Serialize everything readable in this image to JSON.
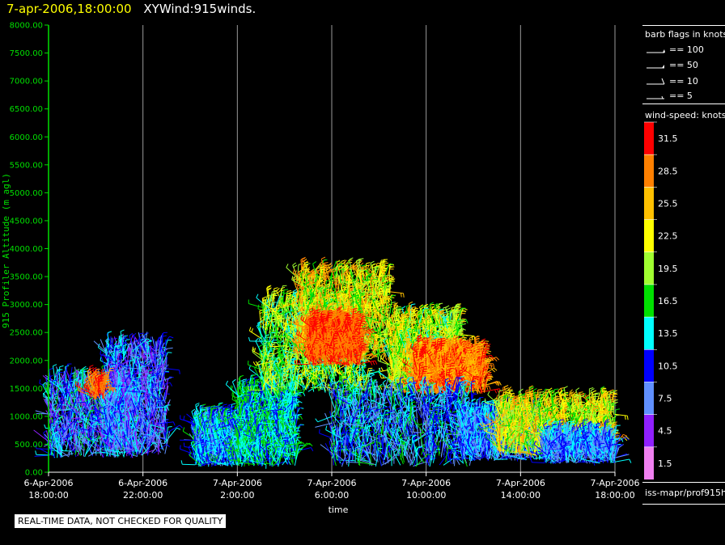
{
  "header": {
    "date": "7-apr-2006,18:00:00",
    "name": "XYWind:915winds."
  },
  "barb_legend": {
    "title": "barb flags in knots",
    "items": [
      "== 100",
      "== 50",
      "== 10",
      "== 5"
    ]
  },
  "wind_speed_legend": {
    "title": "wind-speed: knots",
    "bins": [
      {
        "label": "31.5",
        "color": "#ff0000"
      },
      {
        "label": "28.5",
        "color": "#ff8000"
      },
      {
        "label": "25.5",
        "color": "#ffc000"
      },
      {
        "label": "22.5",
        "color": "#ffff00"
      },
      {
        "label": "19.5",
        "color": "#a0ff30"
      },
      {
        "label": "16.5",
        "color": "#00e000"
      },
      {
        "label": "13.5",
        "color": "#00ffff"
      },
      {
        "label": "10.5",
        "color": "#0000ff"
      },
      {
        "label": "7.5",
        "color": "#6090ff"
      },
      {
        "label": "4.5",
        "color": "#9020ff"
      },
      {
        "label": "1.5",
        "color": "#f080f0"
      }
    ]
  },
  "source_label": "iss-mapr/prof915h",
  "quality_notice": "REAL-TIME DATA, NOT CHECKED FOR QUALITY",
  "chart_data": {
    "type": "scatter",
    "ylabel": "915 Profiler Altitude (m agl)",
    "xlabel": "time",
    "ylim": [
      0,
      8000
    ],
    "y_ticks": [
      "0.00",
      "500.00",
      "1000.00",
      "1500.00",
      "2000.00",
      "2500.00",
      "3000.00",
      "3500.00",
      "4000.00",
      "4500.00",
      "5000.00",
      "5500.00",
      "6000.00",
      "6500.00",
      "7000.00",
      "7500.00",
      "8000.00"
    ],
    "x_range_hours": [
      0,
      24
    ],
    "x_ticks": [
      {
        "date": "6-Apr-2006",
        "time": "18:00:00"
      },
      {
        "date": "6-Apr-2006",
        "time": "22:00:00"
      },
      {
        "date": "7-Apr-2006",
        "time": "2:00:00"
      },
      {
        "date": "7-Apr-2006",
        "time": "6:00:00"
      },
      {
        "date": "7-Apr-2006",
        "time": "10:00:00"
      },
      {
        "date": "7-Apr-2006",
        "time": "14:00:00"
      },
      {
        "date": "7-Apr-2006",
        "time": "18:00:00"
      }
    ],
    "grid": "vertical",
    "series_description_note": "wind barbs colored by wind speed (knots)",
    "clusters": [
      {
        "x0": 0.0,
        "x1": 3.8,
        "y0": 250,
        "y1": 1600,
        "speed": [
          4,
          16
        ]
      },
      {
        "x0": 2.4,
        "x1": 5.0,
        "y0": 300,
        "y1": 2200,
        "speed": [
          4,
          14
        ]
      },
      {
        "x0": 1.8,
        "x1": 2.4,
        "y0": 1300,
        "y1": 1550,
        "speed": [
          26,
          32
        ]
      },
      {
        "x0": 6.2,
        "x1": 8.0,
        "y0": 100,
        "y1": 900,
        "speed": [
          8,
          16
        ]
      },
      {
        "x0": 8.0,
        "x1": 10.5,
        "y0": 100,
        "y1": 1400,
        "speed": [
          10,
          18
        ]
      },
      {
        "x0": 9.0,
        "x1": 13.5,
        "y0": 1400,
        "y1": 3000,
        "speed": [
          12,
          24
        ]
      },
      {
        "x0": 10.5,
        "x1": 14.5,
        "y0": 2000,
        "y1": 3500,
        "speed": [
          15,
          29
        ]
      },
      {
        "x0": 11.0,
        "x1": 13.2,
        "y0": 1900,
        "y1": 2600,
        "speed": [
          27,
          32
        ]
      },
      {
        "x0": 14.5,
        "x1": 17.5,
        "y0": 1400,
        "y1": 2700,
        "speed": [
          14,
          26
        ]
      },
      {
        "x0": 15.5,
        "x1": 18.5,
        "y0": 1400,
        "y1": 2100,
        "speed": [
          24,
          32
        ]
      },
      {
        "x0": 12.0,
        "x1": 18.0,
        "y0": 100,
        "y1": 1400,
        "speed": [
          6,
          16
        ]
      },
      {
        "x0": 17.5,
        "x1": 21.0,
        "y0": 200,
        "y1": 1000,
        "speed": [
          6,
          14
        ]
      },
      {
        "x0": 19.0,
        "x1": 24.0,
        "y0": 300,
        "y1": 1200,
        "speed": [
          15,
          28
        ]
      },
      {
        "x0": 21.0,
        "x1": 24.0,
        "y0": 150,
        "y1": 600,
        "speed": [
          6,
          14
        ]
      }
    ]
  }
}
